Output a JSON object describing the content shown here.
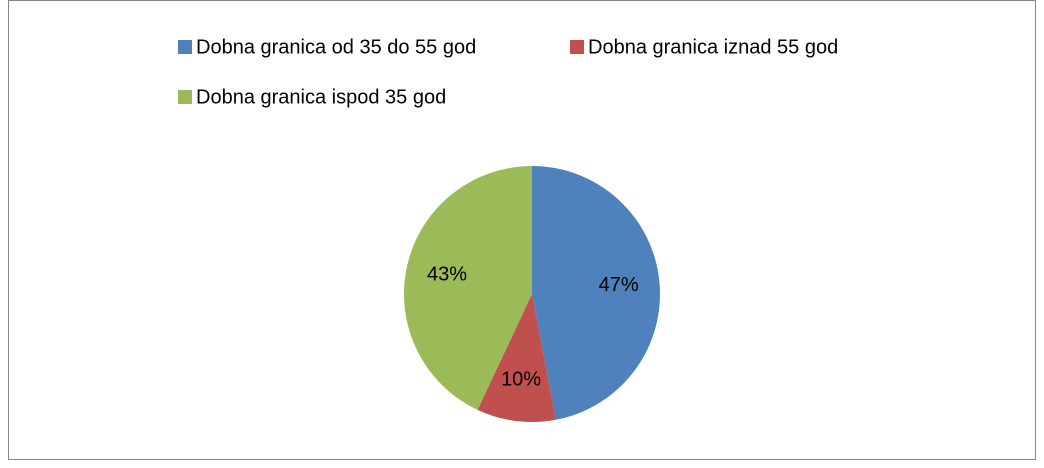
{
  "chart_data": {
    "type": "pie",
    "categories": [
      "Dobna granica od 35 do 55 god",
      "Dobna granica iznad 55 god",
      "Dobna granica ispod 35 god"
    ],
    "values": [
      47,
      10,
      43
    ],
    "value_labels": [
      "47%",
      "10%",
      "43%"
    ],
    "colors": [
      "#4f81bd",
      "#c0504d",
      "#9bbb59"
    ],
    "legend": "top"
  }
}
